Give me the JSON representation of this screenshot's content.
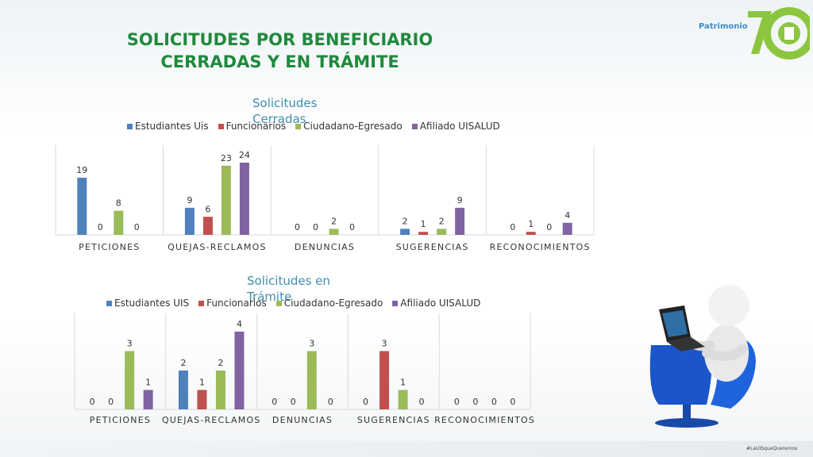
{
  "title_line1": "SOLICITUDES POR BENEFICIARIO",
  "title_line2": "CERRADAS Y EN TRÁMITE",
  "logo": {
    "text": "Patrimonio",
    "badge": "70",
    "icon": "uis-70-anniversary-logo"
  },
  "illustration": {
    "icon": "person-at-laptop-figure"
  },
  "footer_tag": "#LaUISqueQueremos",
  "colors": {
    "series": [
      "#4f81bd",
      "#c0504d",
      "#9bbb59",
      "#8064a2"
    ],
    "title": "#1f8a3c",
    "chart_title": "#3e8fb0"
  },
  "chart_data": [
    {
      "type": "bar",
      "title": "Solicitudes Cerradas",
      "categories": [
        "PETICIONES",
        "QUEJAS-RECLAMOS",
        "DENUNCIAS",
        "SUGERENCIAS",
        "RECONOCIMIENTOS"
      ],
      "series": [
        {
          "name": "Estudiantes Uis",
          "values": [
            19,
            9,
            0,
            2,
            0
          ]
        },
        {
          "name": "Funcionarios",
          "values": [
            0,
            6,
            0,
            1,
            1
          ]
        },
        {
          "name": "Ciudadano-Egresado",
          "values": [
            8,
            23,
            2,
            2,
            0
          ]
        },
        {
          "name": "Afiliado UISALUD",
          "values": [
            0,
            24,
            0,
            9,
            4
          ]
        }
      ],
      "ylim": [
        0,
        24
      ],
      "legend": "top",
      "grid": false
    },
    {
      "type": "bar",
      "title": "Solicitudes en Trámite",
      "categories": [
        "PETICIONES",
        "QUEJAS-RECLAMOS",
        "DENUNCIAS",
        "SUGERENCIAS",
        "RECONOCIMIENTOS"
      ],
      "series": [
        {
          "name": "Estudiantes UIS",
          "values": [
            0,
            2,
            0,
            0,
            0
          ]
        },
        {
          "name": "Funcionarios",
          "values": [
            0,
            1,
            0,
            3,
            0
          ]
        },
        {
          "name": "Ciudadano-Egresado",
          "values": [
            3,
            2,
            3,
            1,
            0
          ]
        },
        {
          "name": "Afiliado UISALUD",
          "values": [
            1,
            4,
            0,
            0,
            0
          ]
        }
      ],
      "ylim": [
        0,
        4
      ],
      "legend": "top",
      "grid": false
    }
  ]
}
